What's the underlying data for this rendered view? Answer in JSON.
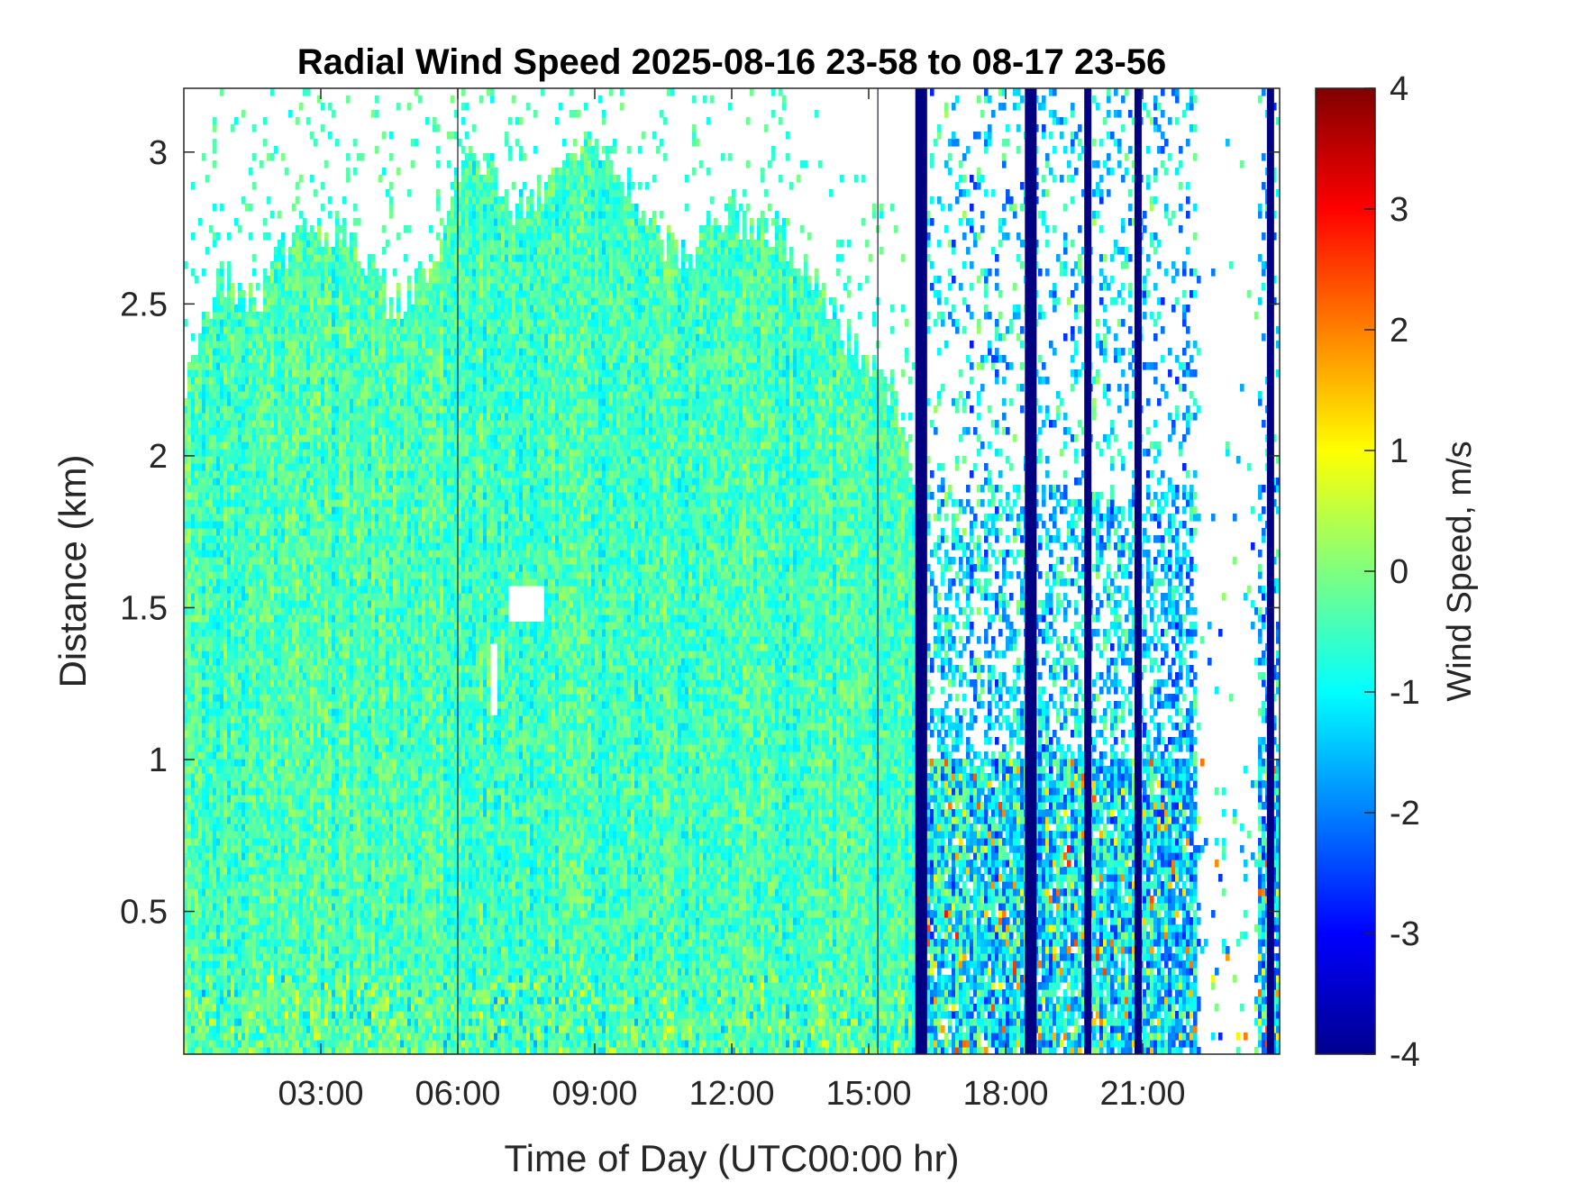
{
  "chart_data": {
    "type": "heatmap",
    "title": "Radial Wind Speed 2025-08-16 23-58 to 08-17 23-56",
    "xlabel": "Time of Day (UTC00:00 hr)",
    "ylabel": "Distance (km)",
    "colorbar_label": "Wind Speed, m/s",
    "colormap": "jet",
    "x_tick_labels": [
      "03:00",
      "06:00",
      "09:00",
      "12:00",
      "15:00",
      "18:00",
      "21:00"
    ],
    "x_ticks_hours": [
      3,
      6,
      9,
      12,
      15,
      18,
      21
    ],
    "xlim_hours": [
      0,
      24
    ],
    "y_ticks": [
      0.5,
      1,
      1.5,
      2,
      2.5,
      3
    ],
    "y_tick_labels": [
      "0.5",
      "1",
      "1.5",
      "2",
      "2.5",
      "3"
    ],
    "ylim_km": [
      0.03,
      3.21
    ],
    "clim": [
      -4,
      4
    ],
    "colorbar_ticks": [
      4,
      3,
      2,
      1,
      0,
      -1,
      -2,
      -3,
      -4
    ],
    "colorbar_tick_labels": [
      "4",
      "3",
      "2",
      "1",
      "0",
      "-1",
      "-2",
      "-3",
      "-4"
    ],
    "data_top_km_by_hour": [
      {
        "hour": 0.0,
        "top": 2.2
      },
      {
        "hour": 0.5,
        "top": 2.5
      },
      {
        "hour": 1.0,
        "top": 2.6
      },
      {
        "hour": 1.5,
        "top": 2.5
      },
      {
        "hour": 2.0,
        "top": 2.6
      },
      {
        "hour": 2.5,
        "top": 2.8
      },
      {
        "hour": 3.0,
        "top": 2.7
      },
      {
        "hour": 3.5,
        "top": 2.75
      },
      {
        "hour": 4.0,
        "top": 2.65
      },
      {
        "hour": 4.5,
        "top": 2.5
      },
      {
        "hour": 5.0,
        "top": 2.55
      },
      {
        "hour": 5.5,
        "top": 2.6
      },
      {
        "hour": 6.0,
        "top": 2.95
      },
      {
        "hour": 6.5,
        "top": 3.0
      },
      {
        "hour": 7.0,
        "top": 2.85
      },
      {
        "hour": 7.5,
        "top": 2.8
      },
      {
        "hour": 8.0,
        "top": 2.9
      },
      {
        "hour": 8.5,
        "top": 3.0
      },
      {
        "hour": 9.0,
        "top": 3.0
      },
      {
        "hour": 9.5,
        "top": 2.95
      },
      {
        "hour": 10.0,
        "top": 2.8
      },
      {
        "hour": 10.5,
        "top": 2.7
      },
      {
        "hour": 11.0,
        "top": 2.65
      },
      {
        "hour": 11.5,
        "top": 2.75
      },
      {
        "hour": 12.0,
        "top": 2.8
      },
      {
        "hour": 12.5,
        "top": 2.75
      },
      {
        "hour": 13.0,
        "top": 2.75
      },
      {
        "hour": 13.5,
        "top": 2.6
      },
      {
        "hour": 14.0,
        "top": 2.55
      },
      {
        "hour": 14.5,
        "top": 2.4
      },
      {
        "hour": 15.0,
        "top": 2.3
      },
      {
        "hour": 15.5,
        "top": 2.2
      },
      {
        "hour": 16.0,
        "top": 1.9
      }
    ],
    "sparse_region_hours": [
      16.2,
      24.0
    ],
    "gap_patch_km": [
      {
        "hour_start": 7.1,
        "hour_end": 7.9,
        "km_start": 1.45,
        "km_end": 1.58
      },
      {
        "hour_start": 6.75,
        "hour_end": 6.9,
        "km_start": 1.15,
        "km_end": 1.38
      }
    ],
    "strong_negative_columns_hours": [
      16.1,
      16.2,
      18.5,
      18.6,
      19.8,
      20.9,
      23.8
    ],
    "thin_line_hours": [
      6.0,
      15.2
    ]
  }
}
